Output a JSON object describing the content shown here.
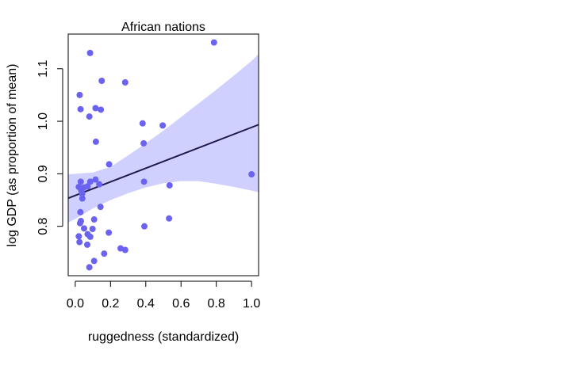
{
  "chart_data": {
    "type": "scatter",
    "title": "African nations",
    "xlabel": "ruggedness (standardized)",
    "ylabel": "log GDP (as proportion of mean)",
    "xlim": [
      -0.04,
      1.04
    ],
    "ylim": [
      0.706,
      1.166
    ],
    "xticks": [
      "0.0",
      "0.2",
      "0.4",
      "0.6",
      "0.8",
      "1.0"
    ],
    "yticks": [
      "0.8",
      "0.9",
      "1.0",
      "1.1"
    ],
    "grid": false,
    "colors": {
      "points": "#6b63f0",
      "line": "#1e1b4b",
      "band": "#d0d0ff"
    },
    "points": {
      "x": [
        0.084,
        0.787,
        0.15,
        0.283,
        0.025,
        0.03,
        0.115,
        0.145,
        0.08,
        0.382,
        0.496,
        0.117,
        0.388,
        0.192,
        1.0,
        0.115,
        0.085,
        0.031,
        0.07,
        0.136,
        0.02,
        0.049,
        0.039,
        0.034,
        0.04,
        0.39,
        0.535,
        0.143,
        0.029,
        0.107,
        0.532,
        0.027,
        0.032,
        0.392,
        0.05,
        0.098,
        0.19,
        0.07,
        0.085,
        0.02,
        0.024,
        0.257,
        0.283,
        0.164,
        0.107,
        0.068,
        0.08
      ],
      "y": [
        1.13,
        1.15,
        1.077,
        1.074,
        1.05,
        1.023,
        1.025,
        1.022,
        1.009,
        0.996,
        0.992,
        0.961,
        0.958,
        0.918,
        0.899,
        0.889,
        0.885,
        0.885,
        0.876,
        0.88,
        0.875,
        0.874,
        0.862,
        0.868,
        0.853,
        0.885,
        0.878,
        0.837,
        0.827,
        0.813,
        0.815,
        0.806,
        0.81,
        0.8,
        0.796,
        0.795,
        0.788,
        0.785,
        0.78,
        0.781,
        0.77,
        0.758,
        0.755,
        0.748,
        0.734,
        0.765,
        0.722
      ]
    },
    "regression_line": {
      "x": [
        -0.04,
        1.04
      ],
      "y": [
        0.8535,
        0.9935
      ]
    },
    "interval_band": {
      "x": [
        -0.04,
        0.0,
        0.1,
        0.2,
        0.3,
        0.4,
        0.5,
        0.6,
        0.7,
        0.8,
        0.9,
        1.0,
        1.04
      ],
      "upper": [
        0.899,
        0.9,
        0.9025,
        0.913,
        0.935,
        0.958,
        0.982,
        1.008,
        1.034,
        1.06,
        1.087,
        1.115,
        1.128
      ],
      "lower": [
        0.807,
        0.814,
        0.834,
        0.85,
        0.863,
        0.874,
        0.882,
        0.886,
        0.886,
        0.881,
        0.875,
        0.868,
        0.865
      ]
    }
  }
}
